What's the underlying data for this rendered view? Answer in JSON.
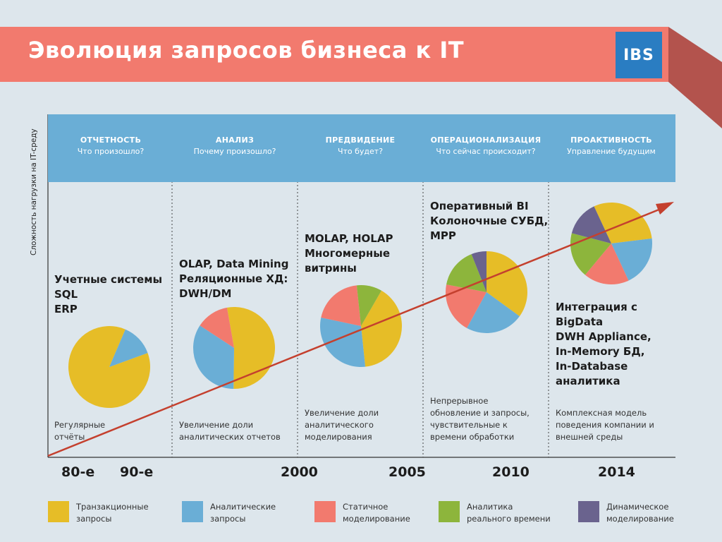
{
  "header": {
    "title": "Эволюция запросов бизнеса к IT",
    "logo_text": "IBS"
  },
  "axis": {
    "y_label": "Сложность нагрузки на IT-среду"
  },
  "phases": [
    {
      "title": "ОТЧЕТНОСТЬ",
      "subtitle": "Что произошло?"
    },
    {
      "title": "АНАЛИЗ",
      "subtitle": "Почему произошло?"
    },
    {
      "title": "ПРЕДВИДЕНИЕ",
      "subtitle": "Что будет?"
    },
    {
      "title": "ОПЕРАЦИОНАЛИЗАЦИЯ",
      "subtitle": "Что сейчас происходит?"
    },
    {
      "title": "ПРОАКТИВНОСТЬ",
      "subtitle": "Управление будущим"
    }
  ],
  "stages": [
    {
      "tech": [
        "Учетные системы",
        "SQL",
        "ERP"
      ],
      "note": [
        "Регулярные",
        "отчёты"
      ],
      "pie": [
        {
          "type": "transactional",
          "share": 0.87
        },
        {
          "type": "analytical",
          "share": 0.13
        }
      ]
    },
    {
      "tech": [
        "OLAP, Data Mining",
        "Реляционные ХД:",
        "DWH/DM"
      ],
      "note": [
        "Увеличение доли",
        "аналитических отчетов"
      ],
      "pie": [
        {
          "type": "transactional",
          "share": 0.53
        },
        {
          "type": "analytical",
          "share": 0.34
        },
        {
          "type": "static",
          "share": 0.13
        }
      ]
    },
    {
      "tech": [
        "MOLAP, HOLAP",
        "Многомерные",
        "витрины"
      ],
      "note": [
        "Увеличение доли",
        "аналитического",
        "моделирования"
      ],
      "pie": [
        {
          "type": "transactional",
          "share": 0.4
        },
        {
          "type": "analytical",
          "share": 0.3
        },
        {
          "type": "static",
          "share": 0.2
        },
        {
          "type": "realtime",
          "share": 0.1
        }
      ]
    },
    {
      "tech": [
        "Оперативный BI",
        "Колоночные СУБД,",
        "MPP"
      ],
      "note": [
        "Непрерывное",
        "обновление и запросы,",
        "чувствительные к",
        "времени обработки"
      ],
      "pie": [
        {
          "type": "transactional",
          "share": 0.35
        },
        {
          "type": "analytical",
          "share": 0.23
        },
        {
          "type": "static",
          "share": 0.2
        },
        {
          "type": "realtime",
          "share": 0.16
        },
        {
          "type": "dynamic",
          "share": 0.06
        }
      ]
    },
    {
      "tech": [
        "Интеграция с",
        "BigData",
        "DWH Appliance,",
        "In-Memory БД,",
        "In-Database",
        "аналитика"
      ],
      "note": [
        "Комплексная модель",
        "поведения компании и",
        "внешней среды"
      ],
      "pie": [
        {
          "type": "transactional",
          "share": 0.3
        },
        {
          "type": "analytical",
          "share": 0.2
        },
        {
          "type": "static",
          "share": 0.18
        },
        {
          "type": "realtime",
          "share": 0.18
        },
        {
          "type": "dynamic",
          "share": 0.14
        }
      ]
    }
  ],
  "years": [
    "80-е",
    "90-е",
    "2000",
    "2005",
    "2010",
    "2014"
  ],
  "legend": [
    {
      "type": "transactional",
      "label": [
        "Транзакционные",
        "запросы"
      ],
      "color": "#e6bd27"
    },
    {
      "type": "analytical",
      "label": [
        "Аналитические",
        "запросы"
      ],
      "color": "#6aaed6"
    },
    {
      "type": "static",
      "label": [
        "Статичное",
        "моделирование"
      ],
      "color": "#f27a6e"
    },
    {
      "type": "realtime",
      "label": [
        "Аналитика",
        "реального времени"
      ],
      "color": "#8db53c"
    },
    {
      "type": "dynamic",
      "label": [
        "Динамическое",
        "моделирование"
      ],
      "color": "#6a638e"
    }
  ],
  "colors": {
    "banner": "#f27a6e",
    "banner_fold": "#b3534d",
    "band": "#6aaed6",
    "arrow": "#c4402e",
    "logo": "#2a7dc2"
  }
}
